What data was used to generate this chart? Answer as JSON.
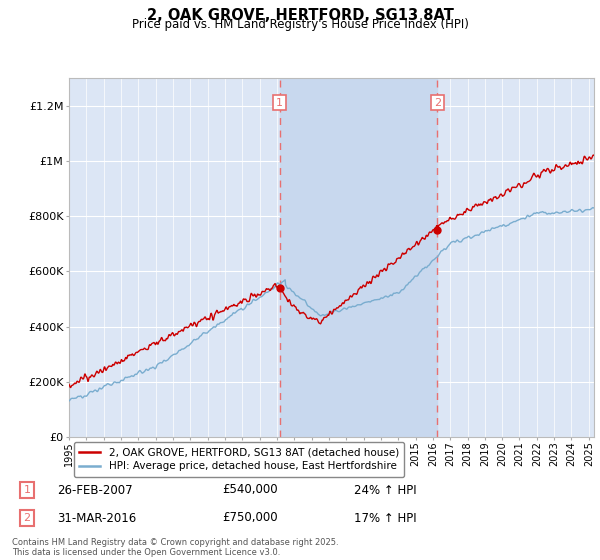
{
  "title": "2, OAK GROVE, HERTFORD, SG13 8AT",
  "subtitle": "Price paid vs. HM Land Registry's House Price Index (HPI)",
  "red_label": "2, OAK GROVE, HERTFORD, SG13 8AT (detached house)",
  "blue_label": "HPI: Average price, detached house, East Hertfordshire",
  "sale1_date": "26-FEB-2007",
  "sale1_price": "£540,000",
  "sale1_hpi": "24% ↑ HPI",
  "sale2_date": "31-MAR-2016",
  "sale2_price": "£750,000",
  "sale2_hpi": "17% ↑ HPI",
  "footer": "Contains HM Land Registry data © Crown copyright and database right 2025.\nThis data is licensed under the Open Government Licence v3.0.",
  "vline1_x": 2007.15,
  "vline2_x": 2016.25,
  "ylim": [
    0,
    1300000
  ],
  "xlim_start": 1995.3,
  "xlim_end": 2025.3,
  "plot_bg": "#dce6f5",
  "red_color": "#cc0000",
  "blue_color": "#7aadcf",
  "vline_color": "#e87070",
  "shade_color": "#c8d8ee",
  "grid_color": "#ffffff",
  "yticks": [
    0,
    200000,
    400000,
    600000,
    800000,
    1000000,
    1200000
  ],
  "ylabels": [
    "£0",
    "£200K",
    "£400K",
    "£600K",
    "£800K",
    "£1M",
    "£1.2M"
  ]
}
